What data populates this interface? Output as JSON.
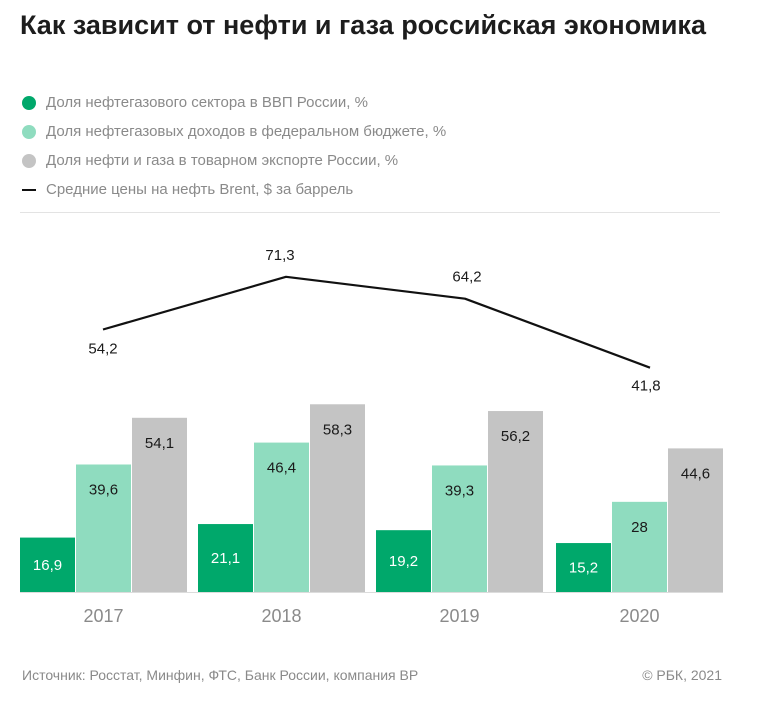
{
  "header": {
    "title": "Как зависит от нефти и газа российская экономика"
  },
  "legend": [
    {
      "label": "Доля нефтегазового сектора в ВВП России, %",
      "marker": "dot",
      "color": "#00a86b"
    },
    {
      "label": "Доля нефтегазовых доходов в федеральном бюджете, %",
      "marker": "dot",
      "color": "#8fdcbf"
    },
    {
      "label": "Доля нефти и газа в товарном экспорте России, %",
      "marker": "dot",
      "color": "#c4c4c4"
    },
    {
      "label": "Средние цены на нефть Brent, $ за баррель",
      "marker": "line",
      "color": "#111111"
    }
  ],
  "chart_data": {
    "type": "bar",
    "categories": [
      "2017",
      "2018",
      "2019",
      "2020"
    ],
    "series": [
      {
        "name": "Доля нефтегазового сектора в ВВП России, %",
        "type": "bar",
        "color": "#00a86b",
        "values": [
          16.9,
          21.1,
          19.2,
          15.2
        ],
        "labels": [
          "16,9",
          "21,1",
          "19,2",
          "15,2"
        ]
      },
      {
        "name": "Доля нефтегазовых доходов в федеральном бюджете, %",
        "type": "bar",
        "color": "#8fdcbf",
        "values": [
          39.6,
          46.4,
          39.3,
          28
        ],
        "labels": [
          "39,6",
          "46,4",
          "39,3",
          "28"
        ]
      },
      {
        "name": "Доля нефти и газа в товарном экспорте России, %",
        "type": "bar",
        "color": "#c4c4c4",
        "values": [
          54.1,
          58.3,
          56.2,
          44.6
        ],
        "labels": [
          "54,1",
          "58,3",
          "56,2",
          "44,6"
        ]
      },
      {
        "name": "Средние цены на нефть Brent, $ за баррель",
        "type": "line",
        "color": "#111111",
        "values": [
          54.2,
          71.3,
          64.2,
          41.8
        ],
        "labels": [
          "54,2",
          "71,3",
          "64,2",
          "41,8"
        ]
      }
    ],
    "grid": false,
    "legend_position": "top-left"
  },
  "footer": {
    "source": "Источник: Росстат, Минфин, ФТС, Банк России, компания BP",
    "copyright": "© РБК, 2021"
  }
}
